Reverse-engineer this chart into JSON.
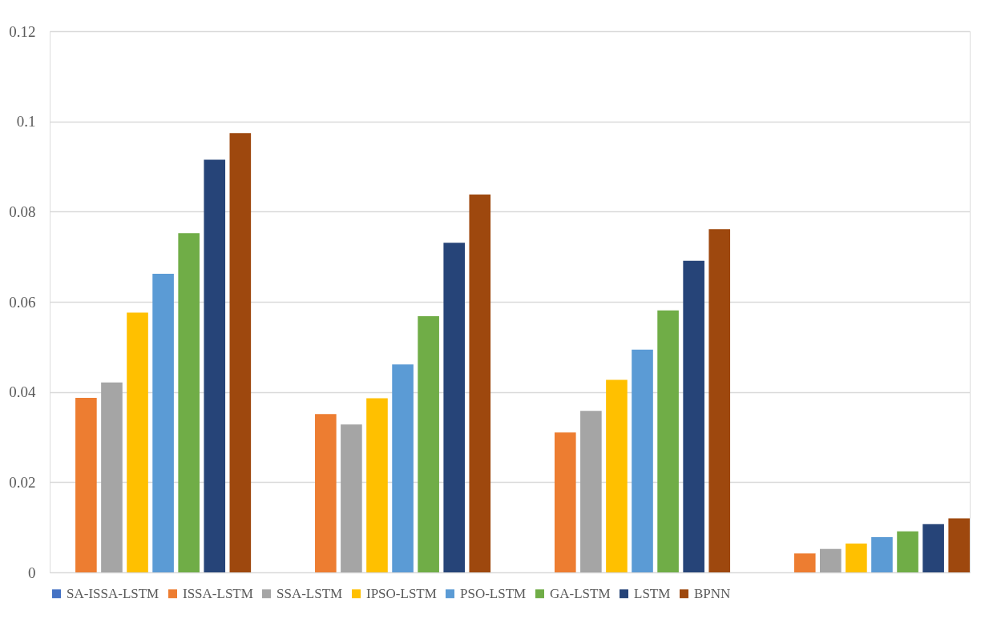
{
  "chart_data": {
    "type": "bar",
    "categories": [
      null,
      null,
      null,
      null
    ],
    "series": [
      {
        "name": "SA-ISSA-LSTM",
        "color": "#4472c4",
        "values": [
          0,
          0,
          0,
          0
        ]
      },
      {
        "name": "ISSA-LSTM",
        "color": "#ed7d31",
        "values": [
          0.0387,
          0.0351,
          0.031,
          0.0042
        ]
      },
      {
        "name": "SSA-LSTM",
        "color": "#a5a5a5",
        "values": [
          0.0421,
          0.0328,
          0.0358,
          0.0052
        ]
      },
      {
        "name": "IPSO-LSTM",
        "color": "#ffc000",
        "values": [
          0.0576,
          0.0386,
          0.0427,
          0.0064
        ]
      },
      {
        "name": "PSO-LSTM",
        "color": "#5b9bd5",
        "values": [
          0.0662,
          0.0461,
          0.0494,
          0.0078
        ]
      },
      {
        "name": "GA-LSTM",
        "color": "#70ad47",
        "values": [
          0.0752,
          0.0568,
          0.0581,
          0.0091
        ]
      },
      {
        "name": "LSTM",
        "color": "#264478",
        "values": [
          0.0915,
          0.0731,
          0.0691,
          0.0107
        ]
      },
      {
        "name": "BPNN",
        "color": "#9e480e",
        "values": [
          0.0974,
          0.0838,
          0.0761,
          0.012
        ]
      }
    ],
    "ylim": [
      0,
      0.12
    ],
    "yticks": [
      0,
      0.02,
      0.04,
      0.06,
      0.08,
      0.1,
      0.12
    ],
    "grid": "y",
    "legend": "bottom",
    "tick_labels": "y"
  }
}
